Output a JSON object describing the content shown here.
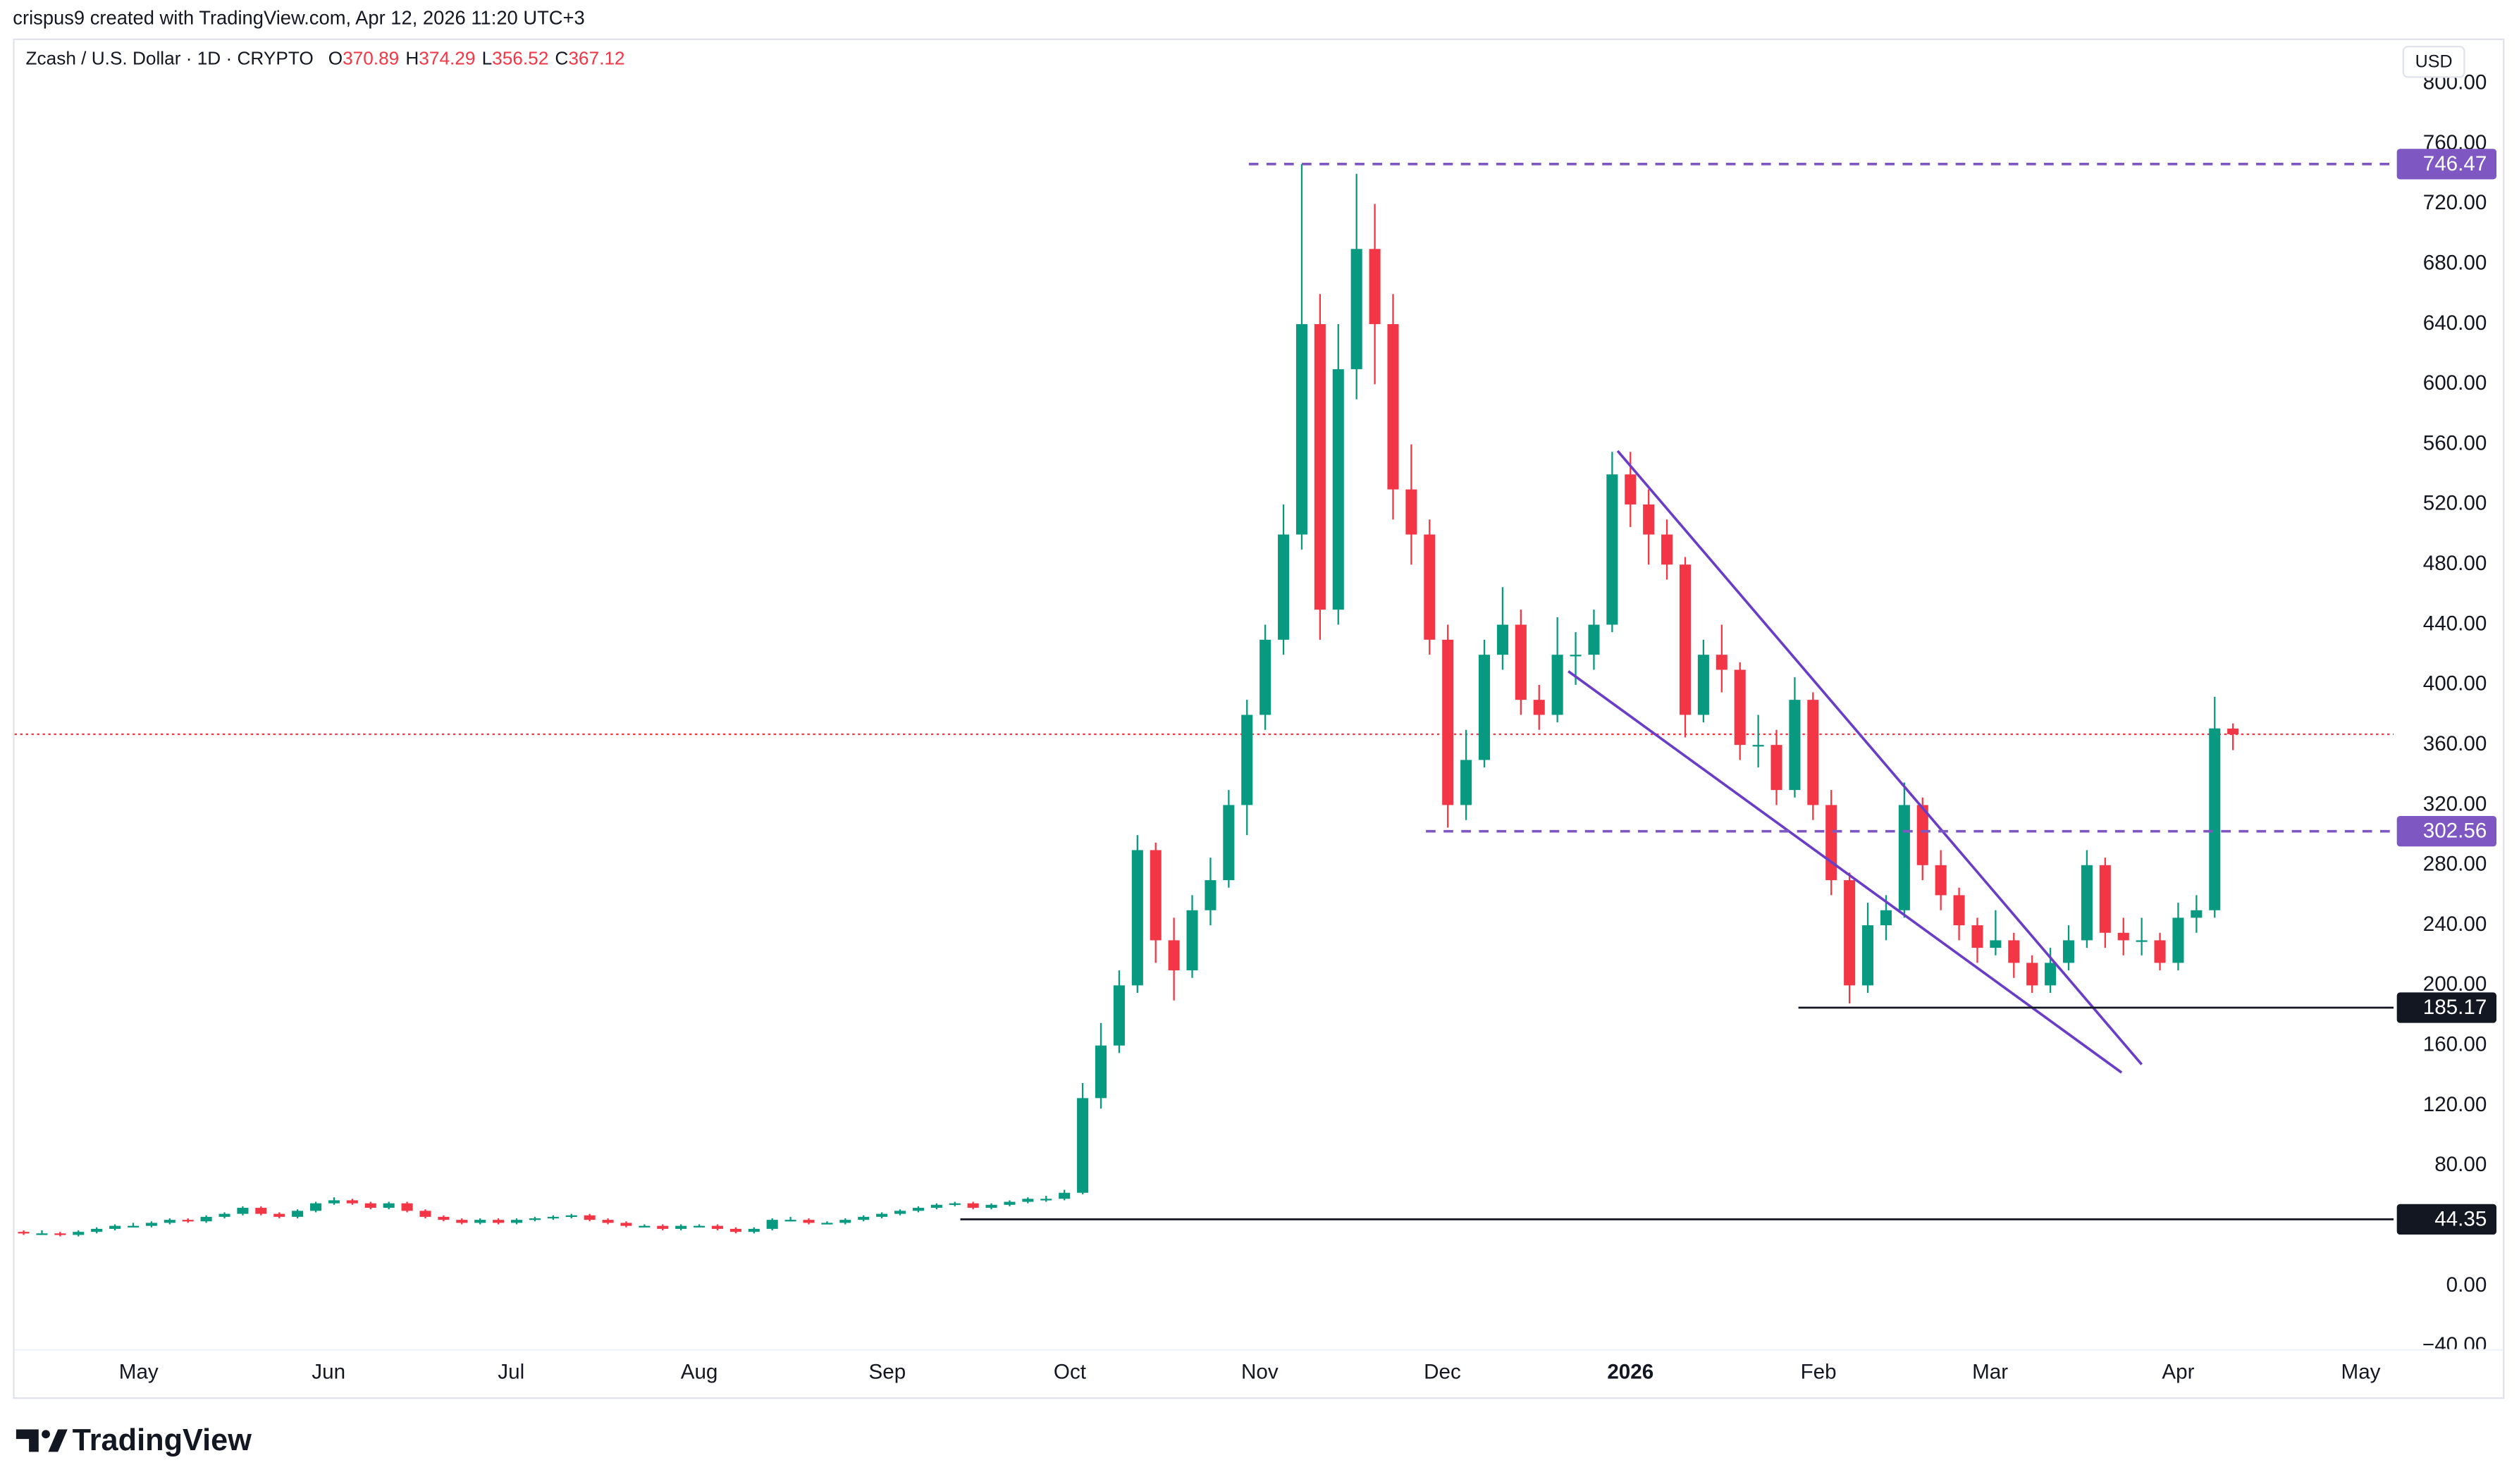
{
  "attribution": "crispus9 created with TradingView.com, Apr 12, 2026 11:20 UTC+3",
  "brand": "TradingView",
  "chart_data": {
    "type": "candlestick",
    "title": "Zcash / U.S. Dollar · 1D · CRYPTO",
    "ohlc_labels": [
      "O",
      "H",
      "L",
      "C"
    ],
    "currency": "USD",
    "up_color": "#089981",
    "down_color": "#f23645",
    "open": [
      36,
      35,
      35,
      34,
      36,
      38,
      40,
      40,
      42,
      44,
      43,
      46,
      48,
      52,
      48,
      46,
      50,
      55,
      57,
      55,
      52,
      55,
      50,
      46,
      44,
      42,
      44,
      42,
      44,
      45,
      46,
      47,
      44,
      42,
      40,
      40,
      38,
      40,
      40,
      38,
      36,
      38,
      44,
      44,
      42,
      42,
      44,
      46,
      48,
      50,
      52,
      54,
      55,
      52,
      54,
      56,
      58,
      58,
      62,
      125,
      160,
      200,
      290,
      230,
      210,
      250,
      270,
      320,
      380,
      430,
      500,
      640,
      450,
      610,
      690,
      640,
      530,
      500,
      430,
      320,
      350,
      420,
      440,
      390,
      380,
      420,
      420,
      440,
      540,
      520,
      500,
      480,
      380,
      420,
      410,
      360,
      360,
      330,
      390,
      320,
      270,
      200,
      240,
      250,
      320,
      280,
      260,
      240,
      225,
      230,
      215,
      200,
      215,
      230,
      280,
      235,
      230,
      230,
      215,
      245,
      250,
      370.89
    ],
    "high": [
      37,
      37,
      36,
      37,
      39,
      41,
      42,
      43,
      45,
      45,
      47,
      49,
      53,
      53,
      49,
      51,
      56,
      59,
      58,
      56,
      56,
      56,
      51,
      47,
      45,
      45,
      45,
      45,
      46,
      47,
      48,
      48,
      45,
      43,
      41,
      41,
      41,
      41,
      41,
      39,
      39,
      45,
      46,
      45,
      43,
      45,
      47,
      49,
      51,
      53,
      55,
      56,
      56,
      55,
      57,
      59,
      60,
      64,
      135,
      175,
      210,
      300,
      295,
      245,
      260,
      285,
      330,
      390,
      440,
      520,
      746.47,
      660,
      640,
      740,
      720,
      660,
      560,
      510,
      440,
      370,
      430,
      465,
      450,
      400,
      445,
      435,
      450,
      555,
      555,
      530,
      510,
      485,
      430,
      440,
      415,
      380,
      370,
      405,
      395,
      330,
      275,
      255,
      260,
      335,
      325,
      290,
      265,
      245,
      250,
      235,
      220,
      225,
      240,
      290,
      285,
      245,
      245,
      235,
      255,
      260,
      392,
      374.29
    ],
    "low": [
      34,
      34,
      33,
      33,
      35,
      37,
      39,
      39,
      41,
      42,
      42,
      45,
      47,
      47,
      45,
      45,
      49,
      54,
      54,
      51,
      51,
      49,
      45,
      43,
      41,
      41,
      41,
      41,
      43,
      44,
      45,
      43,
      41,
      39,
      39,
      37,
      37,
      39,
      37,
      35,
      35,
      37,
      43,
      41,
      41,
      41,
      43,
      45,
      47,
      49,
      51,
      53,
      51,
      51,
      53,
      55,
      56,
      57,
      61,
      118,
      155,
      195,
      215,
      190,
      205,
      240,
      265,
      300,
      370,
      420,
      490,
      430,
      440,
      590,
      600,
      510,
      480,
      420,
      305,
      310,
      345,
      410,
      380,
      370,
      375,
      400,
      410,
      435,
      505,
      480,
      470,
      365,
      375,
      395,
      350,
      345,
      320,
      325,
      310,
      260,
      188,
      195,
      230,
      245,
      270,
      250,
      230,
      215,
      220,
      205,
      195,
      195,
      210,
      225,
      225,
      220,
      220,
      210,
      210,
      235,
      245,
      356.52
    ],
    "close": [
      35,
      35,
      34,
      36,
      38,
      40,
      40,
      42,
      44,
      43,
      46,
      48,
      52,
      48,
      46,
      50,
      55,
      57,
      55,
      52,
      55,
      50,
      46,
      44,
      42,
      44,
      42,
      44,
      45,
      46,
      47,
      44,
      42,
      40,
      40,
      38,
      40,
      40,
      38,
      36,
      38,
      44,
      44,
      42,
      42,
      44,
      46,
      48,
      50,
      52,
      54,
      55,
      52,
      54,
      56,
      58,
      58,
      62,
      125,
      160,
      200,
      290,
      230,
      210,
      250,
      270,
      320,
      380,
      430,
      500,
      640,
      450,
      610,
      690,
      640,
      530,
      500,
      430,
      320,
      350,
      420,
      440,
      390,
      380,
      420,
      420,
      440,
      540,
      520,
      500,
      480,
      380,
      420,
      410,
      360,
      360,
      330,
      390,
      320,
      270,
      200,
      240,
      250,
      320,
      280,
      260,
      240,
      225,
      230,
      215,
      200,
      215,
      230,
      280,
      235,
      230,
      230,
      215,
      245,
      250,
      371,
      367.12
    ],
    "xlim": [
      -0.5,
      129.8
    ],
    "xticks": [
      {
        "value": 6.3,
        "label": "May"
      },
      {
        "value": 16.7,
        "label": "Jun"
      },
      {
        "value": 26.7,
        "label": "Jul"
      },
      {
        "value": 37,
        "label": "Aug"
      },
      {
        "value": 47.3,
        "label": "Sep"
      },
      {
        "value": 57.3,
        "label": "Oct"
      },
      {
        "value": 67.7,
        "label": "Nov"
      },
      {
        "value": 77.7,
        "label": "Dec"
      },
      {
        "value": 88,
        "label": "2026",
        "bold": true
      },
      {
        "value": 98.3,
        "label": "Feb"
      },
      {
        "value": 107.7,
        "label": "Mar"
      },
      {
        "value": 118,
        "label": "Apr"
      },
      {
        "value": 128,
        "label": "May"
      }
    ],
    "ylim": [
      -42,
      830
    ],
    "yticks": [
      {
        "value": -40,
        "label": "−40.00"
      },
      {
        "value": 0,
        "label": "0.00"
      },
      {
        "value": 80,
        "label": "80.00"
      },
      {
        "value": 120,
        "label": "120.00"
      },
      {
        "value": 160,
        "label": "160.00"
      },
      {
        "value": 200,
        "label": "200.00"
      },
      {
        "value": 240,
        "label": "240.00"
      },
      {
        "value": 280,
        "label": "280.00"
      },
      {
        "value": 320,
        "label": "320.00"
      },
      {
        "value": 360,
        "label": "360.00"
      },
      {
        "value": 400,
        "label": "400.00"
      },
      {
        "value": 440,
        "label": "440.00"
      },
      {
        "value": 480,
        "label": "480.00"
      },
      {
        "value": 520,
        "label": "520.00"
      },
      {
        "value": 560,
        "label": "560.00"
      },
      {
        "value": 600,
        "label": "600.00"
      },
      {
        "value": 640,
        "label": "640.00"
      },
      {
        "value": 680,
        "label": "680.00"
      },
      {
        "value": 720,
        "label": "720.00"
      },
      {
        "value": 760,
        "label": "760.00"
      },
      {
        "value": 800,
        "label": "800.00"
      }
    ],
    "grid": false,
    "last_price_color": "#f23645",
    "price_lines": [
      {
        "value": 746.47,
        "start": 67.1,
        "color": "#7e57c2",
        "dashed": true
      },
      {
        "value": 302.56,
        "start": 76.8,
        "color": "#7e57c2",
        "dashed": true
      },
      {
        "value": 185.17,
        "start": 97.2,
        "color": "#131722",
        "dashed": false
      },
      {
        "value": 44.35,
        "start": 51.3,
        "color": "#131722",
        "dashed": false
      }
    ],
    "trend_lines": [
      {
        "start": [
          87.3,
          555.6
        ],
        "end": [
          116,
          147.4
        ],
        "color": "#6a3dc8"
      },
      {
        "start": [
          84.6,
          409
        ],
        "end": [
          114.9,
          142
        ],
        "color": "#6a3dc8"
      }
    ]
  }
}
